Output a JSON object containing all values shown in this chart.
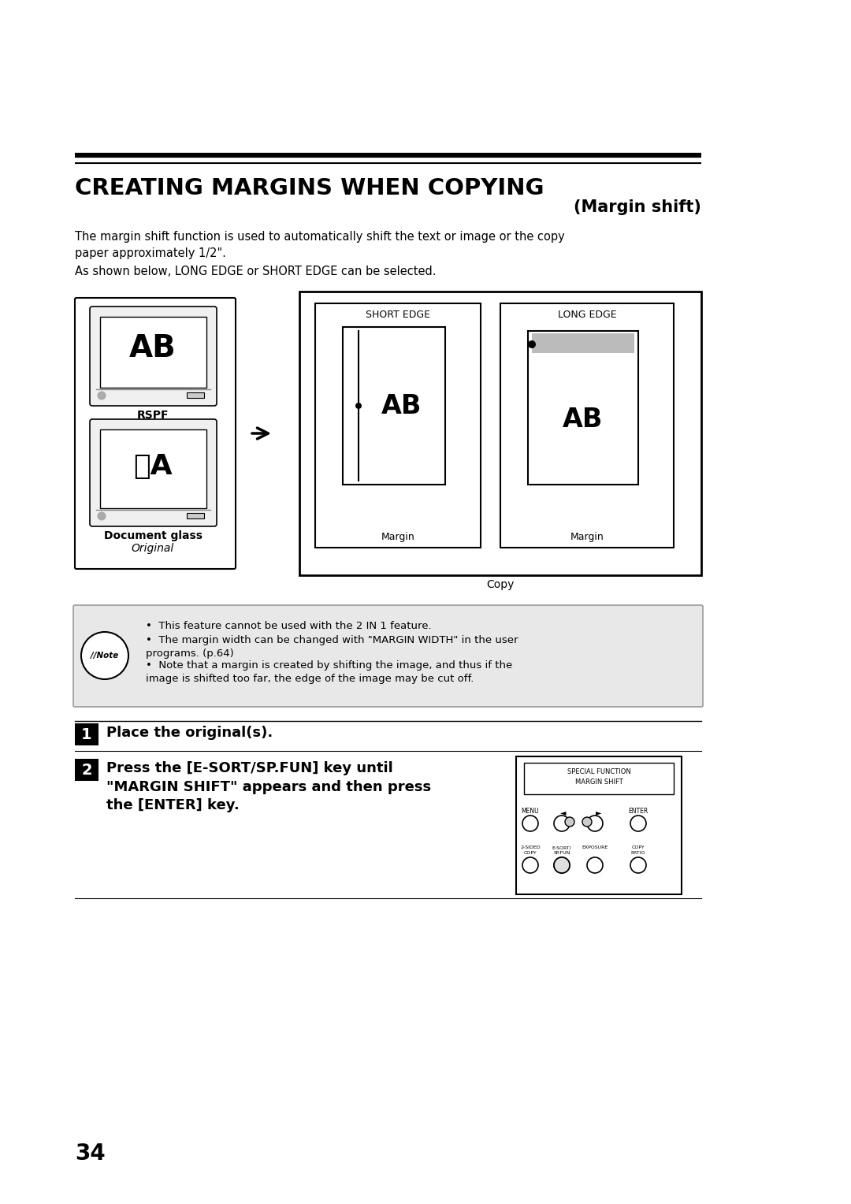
{
  "bg_color": "#ffffff",
  "title_text": "CREATING MARGINS WHEN COPYING",
  "subtitle_text": "(Margin shift)",
  "body_text1": "The margin shift function is used to automatically shift the text or image or the copy\npaper approximately 1/2\".",
  "body_text2": "As shown below, LONG EDGE or SHORT EDGE can be selected.",
  "note_bullets": [
    "This feature cannot be used with the 2 IN 1 feature.",
    "The margin width can be changed with \"MARGIN WIDTH\" in the user\nprograms. (p.64)",
    "Note that a margin is created by shifting the image, and thus if the\nimage is shifted too far, the edge of the image may be cut off."
  ],
  "step1_text": "Place the original(s).",
  "step2_text": "Press the [E-SORT/SP.FUN] key until\n\"MARGIN SHIFT\" appears and then press\nthe [ENTER] key.",
  "page_number": "34",
  "rspf_label": "RSPF",
  "doc_glass_label": "Document glass",
  "original_label": "Original",
  "short_edge_label": "SHORT EDGE",
  "long_edge_label": "LONG EDGE",
  "margin_label1": "Margin",
  "margin_label2": "Margin",
  "copy_label": "Copy"
}
